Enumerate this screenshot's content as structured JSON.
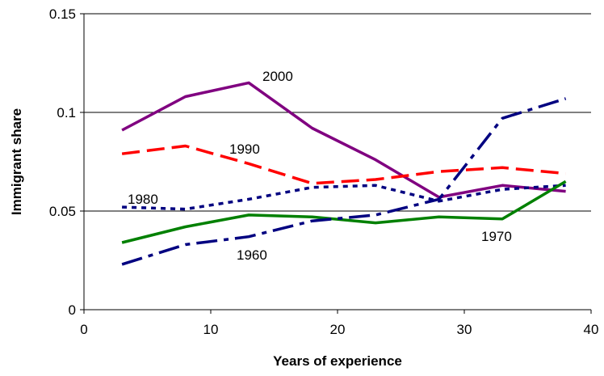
{
  "chart_data": {
    "type": "line",
    "title": "",
    "xlabel": "Years of experience",
    "ylabel": "Immigrant share",
    "xlim": [
      0,
      40
    ],
    "ylim": [
      0,
      0.15
    ],
    "x_ticks": [
      0,
      10,
      20,
      30,
      40
    ],
    "y_ticks": [
      0,
      0.05,
      0.1,
      0.15
    ],
    "x_tick_labels": [
      "0",
      "10",
      "20",
      "30",
      "40"
    ],
    "y_tick_labels": [
      "0",
      "0.05",
      "0.1",
      "0.15"
    ],
    "grid": "horizontal",
    "legend": "none (series labeled inline)",
    "x": [
      3,
      8,
      13,
      18,
      23,
      28,
      33,
      38
    ],
    "series": [
      {
        "name": "2000",
        "color": "#800080",
        "dash": "solid",
        "values": [
          0.091,
          0.108,
          0.115,
          0.092,
          0.076,
          0.057,
          0.063,
          0.06
        ]
      },
      {
        "name": "1990",
        "color": "#ff0000",
        "dash": "dashed",
        "values": [
          0.079,
          0.083,
          0.074,
          0.064,
          0.066,
          0.07,
          0.072,
          0.069
        ]
      },
      {
        "name": "1980",
        "color": "#000080",
        "dash": "dotted",
        "values": [
          0.052,
          0.051,
          0.056,
          0.062,
          0.063,
          0.055,
          0.061,
          0.063
        ]
      },
      {
        "name": "1970",
        "color": "#008000",
        "dash": "solid",
        "values": [
          0.034,
          0.042,
          0.048,
          0.047,
          0.044,
          0.047,
          0.046,
          0.065
        ]
      },
      {
        "name": "1960",
        "color": "#000080",
        "dash": "dashdot",
        "values": [
          0.023,
          0.033,
          0.037,
          0.045,
          0.048,
          0.056,
          0.097,
          0.107
        ]
      }
    ]
  }
}
